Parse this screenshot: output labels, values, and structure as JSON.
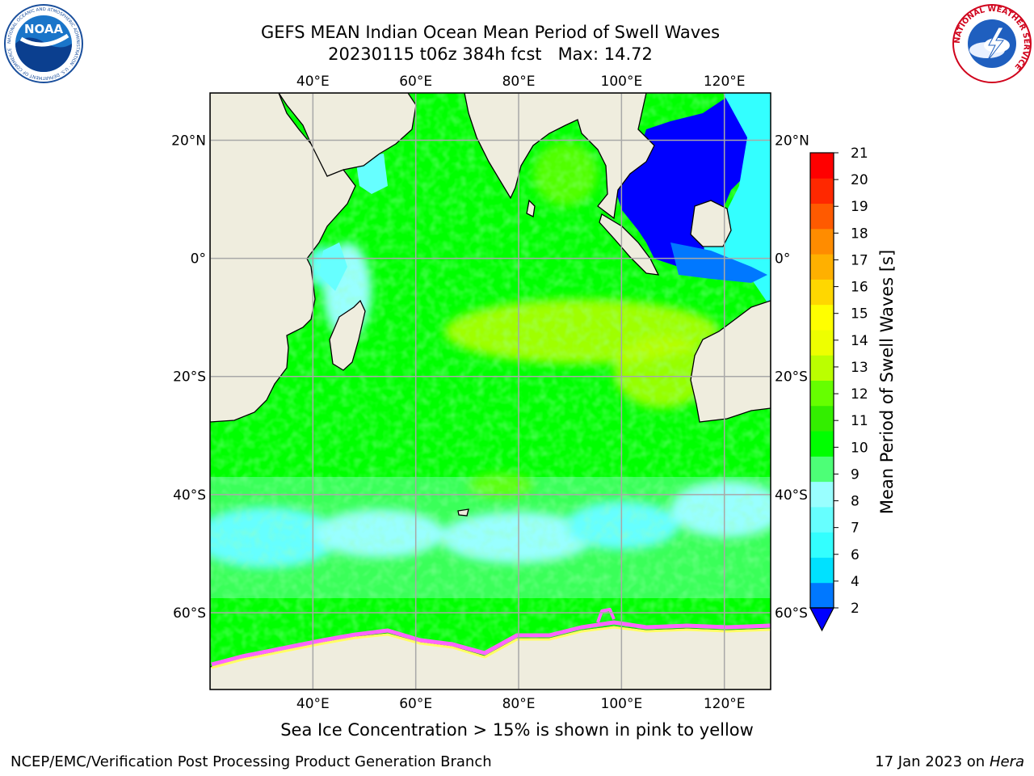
{
  "title": {
    "line1": "GEFS MEAN Indian Ocean Mean Period of Swell Waves",
    "run": "20230115 t06z 384h fcst",
    "max": "Max: 14.72"
  },
  "logos": {
    "noaa_text": "NOAA",
    "noaa_ring": "NATIONAL OCEANIC AND ATMOSPHERIC ADMINISTRATION · U.S. DEPARTMENT OF COMMERCE",
    "nws_ring": "NATIONAL WEATHER SERVICE"
  },
  "map": {
    "projection": "lat-lon",
    "lon_range": [
      20,
      129
    ],
    "lat_range": [
      -73,
      28
    ],
    "lon_ticks": [
      "40°E",
      "60°E",
      "80°E",
      "100°E",
      "120°E"
    ],
    "lat_ticks": [
      "20°N",
      "0°",
      "20°S",
      "40°S",
      "60°S"
    ],
    "lon_tick_values": [
      40,
      60,
      80,
      100,
      120
    ],
    "lat_tick_values": [
      20,
      0,
      -20,
      -40,
      -60
    ],
    "grid": true,
    "land_color": "#efedde",
    "ice_colors": [
      "#ff66ff",
      "#ffff66"
    ]
  },
  "colorbar": {
    "label": "Mean Period of Swell Waves [s]",
    "ticks": [
      "2",
      "4",
      "6",
      "7",
      "8",
      "9",
      "10",
      "11",
      "12",
      "13",
      "14",
      "15",
      "16",
      "17",
      "18",
      "19",
      "20",
      "21"
    ],
    "colors": [
      "#0000ff",
      "#0078ff",
      "#00e1ff",
      "#33ffff",
      "#66ffff",
      "#99ffff",
      "#4dff77",
      "#00ff00",
      "#33ee00",
      "#66ff00",
      "#bbff00",
      "#eeff00",
      "#ffff00",
      "#ffd700",
      "#ffb000",
      "#ff8c00",
      "#ff5a00",
      "#ff2800",
      "#ff0000"
    ],
    "extend": "min"
  },
  "caption": "Sea Ice Concentration > 15% is shown in pink to yellow",
  "footer": {
    "left": "NCEP/EMC/Verification Post Processing Product Generation Branch",
    "date": "17 Jan 2023 on",
    "machine": "Hera"
  }
}
